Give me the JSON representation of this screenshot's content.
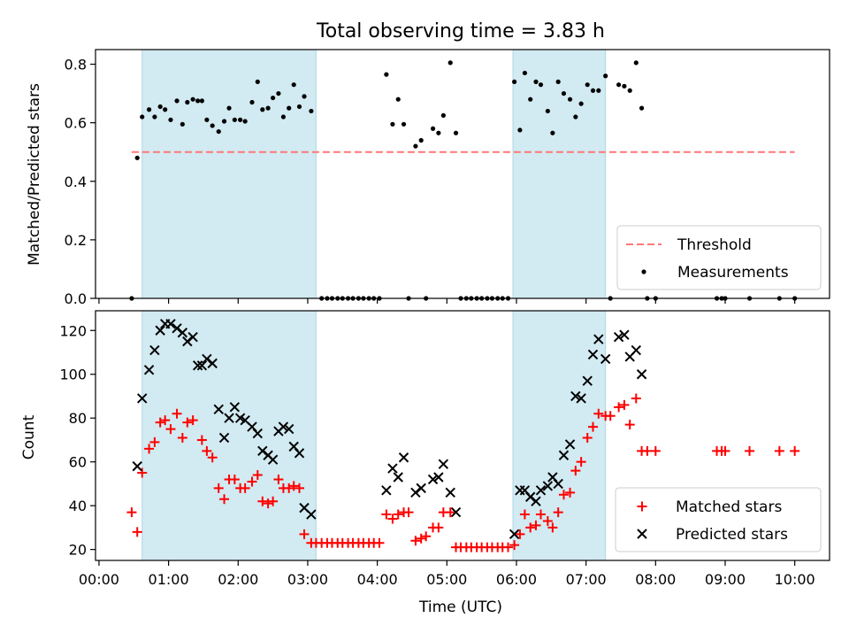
{
  "figure": {
    "title": "Total observing time = 3.83 h",
    "xlabel": "Time (UTC)",
    "xticks": [
      "00:00",
      "01:00",
      "02:00",
      "03:00",
      "04:00",
      "05:00",
      "06:00",
      "07:00",
      "08:00",
      "09:00",
      "10:00"
    ],
    "xlim_hours": [
      -0.05,
      10.5
    ],
    "shaded_intervals_hours": [
      [
        0.62,
        3.12
      ],
      [
        5.95,
        7.28
      ]
    ],
    "shade_color": "#add8e6"
  },
  "chart_data": [
    {
      "type": "scatter",
      "ylabel": "Matched/Predicted stars",
      "ylim": [
        0,
        0.85
      ],
      "yticks": [
        "0.0",
        "0.2",
        "0.4",
        "0.6",
        "0.8"
      ],
      "grid": false,
      "legend_position": "lower-right",
      "threshold": {
        "name": "Threshold",
        "value": 0.5,
        "x_range": [
          0.47,
          10.0
        ],
        "color": "#ff7777",
        "style": "dashed"
      },
      "series": [
        {
          "name": "Measurements",
          "color": "#000000",
          "marker": "dot",
          "points": [
            [
              0.47,
              0.0
            ],
            [
              0.55,
              0.48
            ],
            [
              0.62,
              0.62
            ],
            [
              0.72,
              0.645
            ],
            [
              0.8,
              0.62
            ],
            [
              0.88,
              0.655
            ],
            [
              0.95,
              0.645
            ],
            [
              1.03,
              0.61
            ],
            [
              1.12,
              0.675
            ],
            [
              1.2,
              0.595
            ],
            [
              1.27,
              0.67
            ],
            [
              1.35,
              0.68
            ],
            [
              1.42,
              0.675
            ],
            [
              1.48,
              0.675
            ],
            [
              1.55,
              0.61
            ],
            [
              1.63,
              0.59
            ],
            [
              1.72,
              0.57
            ],
            [
              1.8,
              0.605
            ],
            [
              1.87,
              0.65
            ],
            [
              1.95,
              0.61
            ],
            [
              2.03,
              0.61
            ],
            [
              2.1,
              0.605
            ],
            [
              2.2,
              0.67
            ],
            [
              2.28,
              0.74
            ],
            [
              2.35,
              0.645
            ],
            [
              2.43,
              0.65
            ],
            [
              2.5,
              0.685
            ],
            [
              2.58,
              0.7
            ],
            [
              2.65,
              0.62
            ],
            [
              2.73,
              0.65
            ],
            [
              2.8,
              0.73
            ],
            [
              2.88,
              0.655
            ],
            [
              2.95,
              0.69
            ],
            [
              3.05,
              0.64
            ],
            [
              3.2,
              0.0
            ],
            [
              3.28,
              0.0
            ],
            [
              3.35,
              0.0
            ],
            [
              3.43,
              0.0
            ],
            [
              3.5,
              0.0
            ],
            [
              3.58,
              0.0
            ],
            [
              3.65,
              0.0
            ],
            [
              3.73,
              0.0
            ],
            [
              3.8,
              0.0
            ],
            [
              3.88,
              0.0
            ],
            [
              3.95,
              0.0
            ],
            [
              4.03,
              0.0
            ],
            [
              4.13,
              0.765
            ],
            [
              4.22,
              0.595
            ],
            [
              4.3,
              0.68
            ],
            [
              4.38,
              0.595
            ],
            [
              4.45,
              0.0
            ],
            [
              4.55,
              0.52
            ],
            [
              4.63,
              0.54
            ],
            [
              4.7,
              0.0
            ],
            [
              4.8,
              0.58
            ],
            [
              4.88,
              0.565
            ],
            [
              4.95,
              0.625
            ],
            [
              5.05,
              0.805
            ],
            [
              5.13,
              0.565
            ],
            [
              5.2,
              0.0
            ],
            [
              5.28,
              0.0
            ],
            [
              5.35,
              0.0
            ],
            [
              5.43,
              0.0
            ],
            [
              5.5,
              0.0
            ],
            [
              5.58,
              0.0
            ],
            [
              5.65,
              0.0
            ],
            [
              5.73,
              0.0
            ],
            [
              5.8,
              0.0
            ],
            [
              5.88,
              0.0
            ],
            [
              5.97,
              0.74
            ],
            [
              6.05,
              0.575
            ],
            [
              6.12,
              0.77
            ],
            [
              6.2,
              0.68
            ],
            [
              6.28,
              0.74
            ],
            [
              6.35,
              0.73
            ],
            [
              6.45,
              0.64
            ],
            [
              6.52,
              0.565
            ],
            [
              6.6,
              0.74
            ],
            [
              6.68,
              0.7
            ],
            [
              6.77,
              0.68
            ],
            [
              6.85,
              0.62
            ],
            [
              6.93,
              0.665
            ],
            [
              7.02,
              0.73
            ],
            [
              7.1,
              0.71
            ],
            [
              7.18,
              0.71
            ],
            [
              7.28,
              0.76
            ],
            [
              7.35,
              0.0
            ],
            [
              7.47,
              0.73
            ],
            [
              7.55,
              0.725
            ],
            [
              7.63,
              0.71
            ],
            [
              7.72,
              0.805
            ],
            [
              7.8,
              0.65
            ],
            [
              7.88,
              0.0
            ],
            [
              8.0,
              0.0
            ],
            [
              8.88,
              0.0
            ],
            [
              8.95,
              0.0
            ],
            [
              9.0,
              0.0
            ],
            [
              9.35,
              0.0
            ],
            [
              9.78,
              0.0
            ],
            [
              10.0,
              0.0
            ]
          ]
        }
      ]
    },
    {
      "type": "scatter",
      "ylabel": "Count",
      "ylim": [
        15,
        129
      ],
      "yticks": [
        "20",
        "40",
        "60",
        "80",
        "100",
        "120"
      ],
      "grid": false,
      "legend_position": "lower-right",
      "series": [
        {
          "name": "Matched stars",
          "color": "#ff0000",
          "marker": "plus",
          "points": [
            [
              0.47,
              37
            ],
            [
              0.55,
              28
            ],
            [
              0.62,
              55
            ],
            [
              0.72,
              66
            ],
            [
              0.8,
              69
            ],
            [
              0.88,
              78
            ],
            [
              0.95,
              79
            ],
            [
              1.03,
              75
            ],
            [
              1.12,
              82
            ],
            [
              1.2,
              71
            ],
            [
              1.27,
              78
            ],
            [
              1.35,
              79
            ],
            [
              1.48,
              70
            ],
            [
              1.55,
              65
            ],
            [
              1.63,
              62
            ],
            [
              1.72,
              48
            ],
            [
              1.8,
              43
            ],
            [
              1.87,
              52
            ],
            [
              1.95,
              52
            ],
            [
              2.03,
              48
            ],
            [
              2.1,
              48
            ],
            [
              2.2,
              51
            ],
            [
              2.28,
              54
            ],
            [
              2.35,
              42
            ],
            [
              2.43,
              41
            ],
            [
              2.5,
              42
            ],
            [
              2.58,
              52
            ],
            [
              2.65,
              48
            ],
            [
              2.73,
              48
            ],
            [
              2.8,
              49
            ],
            [
              2.88,
              48
            ],
            [
              2.95,
              27
            ],
            [
              3.05,
              23
            ],
            [
              3.12,
              23
            ],
            [
              3.2,
              23
            ],
            [
              3.28,
              23
            ],
            [
              3.35,
              23
            ],
            [
              3.43,
              23
            ],
            [
              3.5,
              23
            ],
            [
              3.58,
              23
            ],
            [
              3.65,
              23
            ],
            [
              3.73,
              23
            ],
            [
              3.8,
              23
            ],
            [
              3.88,
              23
            ],
            [
              3.95,
              23
            ],
            [
              4.03,
              23
            ],
            [
              4.13,
              36
            ],
            [
              4.22,
              34
            ],
            [
              4.3,
              36
            ],
            [
              4.38,
              37
            ],
            [
              4.45,
              37
            ],
            [
              4.55,
              24
            ],
            [
              4.63,
              25
            ],
            [
              4.7,
              26
            ],
            [
              4.8,
              30
            ],
            [
              4.88,
              30
            ],
            [
              4.95,
              37
            ],
            [
              5.05,
              37
            ],
            [
              5.13,
              21
            ],
            [
              5.2,
              21
            ],
            [
              5.28,
              21
            ],
            [
              5.35,
              21
            ],
            [
              5.43,
              21
            ],
            [
              5.5,
              21
            ],
            [
              5.58,
              21
            ],
            [
              5.65,
              21
            ],
            [
              5.73,
              21
            ],
            [
              5.8,
              21
            ],
            [
              5.88,
              21
            ],
            [
              5.97,
              22
            ],
            [
              6.05,
              27
            ],
            [
              6.12,
              36
            ],
            [
              6.2,
              30
            ],
            [
              6.28,
              31
            ],
            [
              6.35,
              36
            ],
            [
              6.45,
              33
            ],
            [
              6.52,
              30
            ],
            [
              6.6,
              37
            ],
            [
              6.68,
              45
            ],
            [
              6.77,
              46
            ],
            [
              6.85,
              56
            ],
            [
              6.93,
              60
            ],
            [
              7.02,
              71
            ],
            [
              7.1,
              76
            ],
            [
              7.18,
              82
            ],
            [
              7.28,
              81
            ],
            [
              7.35,
              81
            ],
            [
              7.47,
              85
            ],
            [
              7.55,
              86
            ],
            [
              7.63,
              77
            ],
            [
              7.72,
              89
            ],
            [
              7.8,
              65
            ],
            [
              7.88,
              65
            ],
            [
              8.0,
              65
            ],
            [
              8.88,
              65
            ],
            [
              8.95,
              65
            ],
            [
              9.0,
              65
            ],
            [
              9.35,
              65
            ],
            [
              9.78,
              65
            ],
            [
              10.0,
              65
            ]
          ]
        },
        {
          "name": "Predicted stars",
          "color": "#000000",
          "marker": "x",
          "points": [
            [
              0.55,
              58
            ],
            [
              0.62,
              89
            ],
            [
              0.72,
              102
            ],
            [
              0.8,
              111
            ],
            [
              0.88,
              120
            ],
            [
              0.95,
              123
            ],
            [
              1.03,
              123
            ],
            [
              1.12,
              121
            ],
            [
              1.2,
              119
            ],
            [
              1.27,
              115
            ],
            [
              1.35,
              117
            ],
            [
              1.42,
              104
            ],
            [
              1.48,
              104
            ],
            [
              1.55,
              107
            ],
            [
              1.63,
              105
            ],
            [
              1.72,
              84
            ],
            [
              1.8,
              71
            ],
            [
              1.87,
              80
            ],
            [
              1.95,
              85
            ],
            [
              2.03,
              80
            ],
            [
              2.1,
              79
            ],
            [
              2.2,
              76
            ],
            [
              2.28,
              73
            ],
            [
              2.35,
              65
            ],
            [
              2.43,
              63
            ],
            [
              2.5,
              61
            ],
            [
              2.58,
              74
            ],
            [
              2.65,
              76
            ],
            [
              2.73,
              75
            ],
            [
              2.8,
              67
            ],
            [
              2.88,
              64
            ],
            [
              2.95,
              39
            ],
            [
              3.05,
              36
            ],
            [
              4.13,
              47
            ],
            [
              4.22,
              57
            ],
            [
              4.3,
              53
            ],
            [
              4.38,
              62
            ],
            [
              4.55,
              46
            ],
            [
              4.63,
              48
            ],
            [
              4.8,
              52
            ],
            [
              4.88,
              53
            ],
            [
              4.95,
              59
            ],
            [
              5.05,
              46
            ],
            [
              5.13,
              37
            ],
            [
              5.97,
              27
            ],
            [
              6.05,
              47
            ],
            [
              6.12,
              47
            ],
            [
              6.2,
              44
            ],
            [
              6.28,
              42
            ],
            [
              6.35,
              47
            ],
            [
              6.45,
              49
            ],
            [
              6.52,
              53
            ],
            [
              6.6,
              50
            ],
            [
              6.68,
              63
            ],
            [
              6.77,
              68
            ],
            [
              6.85,
              90
            ],
            [
              6.93,
              89
            ],
            [
              7.02,
              97
            ],
            [
              7.1,
              109
            ],
            [
              7.18,
              116
            ],
            [
              7.28,
              107
            ],
            [
              7.47,
              117
            ],
            [
              7.55,
              118
            ],
            [
              7.63,
              108
            ],
            [
              7.72,
              111
            ],
            [
              7.8,
              100
            ]
          ]
        }
      ]
    }
  ]
}
